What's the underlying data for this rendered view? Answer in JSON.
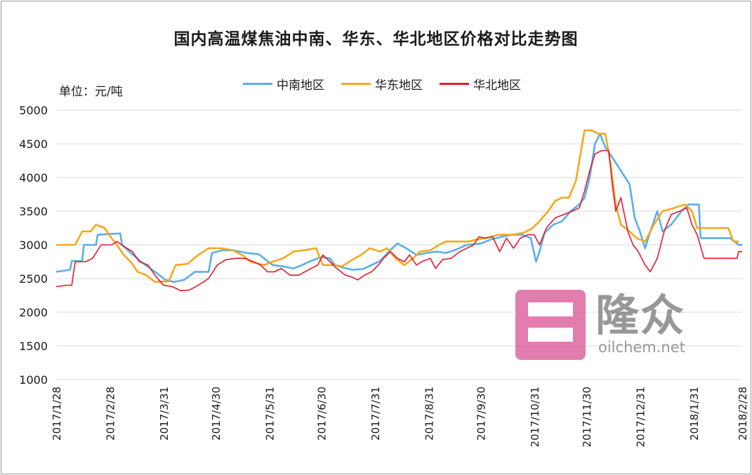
{
  "chart_data": {
    "type": "line",
    "title": "国内高温煤焦油中南、华东、华北地区价格对比走势图",
    "unit_label": "单位：元/吨",
    "ylim": [
      1000,
      5000
    ],
    "yticks": [
      1000,
      1500,
      2000,
      2500,
      3000,
      3500,
      4000,
      4500,
      5000
    ],
    "xticks": [
      "2017/1/28",
      "2017/2/28",
      "2017/3/31",
      "2017/4/30",
      "2017/5/31",
      "2017/6/30",
      "2017/7/31",
      "2017/8/31",
      "2017/9/30",
      "2017/10/31",
      "2017/11/30",
      "2017/12/31",
      "2018/1/31",
      "2018/2/28"
    ],
    "xlim": [
      "2017/1/28",
      "2018/2/28"
    ],
    "grid": true,
    "legend_position": "top-center",
    "series": [
      {
        "name": "中南地区",
        "color": "#5aaee8",
        "points": [
          [
            "2017/1/28",
            2600
          ],
          [
            "2017/2/5",
            2630
          ],
          [
            "2017/2/6",
            2760
          ],
          [
            "2017/2/12",
            2760
          ],
          [
            "2017/2/13",
            3000
          ],
          [
            "2017/2/20",
            3000
          ],
          [
            "2017/2/21",
            3150
          ],
          [
            "2017/3/6",
            3170
          ],
          [
            "2017/3/7",
            3000
          ],
          [
            "2017/3/12",
            2880
          ],
          [
            "2017/3/18",
            2750
          ],
          [
            "2017/3/26",
            2600
          ],
          [
            "2017/4/1",
            2480
          ],
          [
            "2017/4/6",
            2450
          ],
          [
            "2017/4/12",
            2480
          ],
          [
            "2017/4/18",
            2600
          ],
          [
            "2017/4/26",
            2600
          ],
          [
            "2017/4/28",
            2880
          ],
          [
            "2017/5/4",
            2920
          ],
          [
            "2017/5/10",
            2920
          ],
          [
            "2017/5/18",
            2880
          ],
          [
            "2017/5/25",
            2860
          ],
          [
            "2017/5/28",
            2800
          ],
          [
            "2017/6/2",
            2700
          ],
          [
            "2017/6/8",
            2680
          ],
          [
            "2017/6/14",
            2650
          ],
          [
            "2017/6/19",
            2700
          ],
          [
            "2017/6/23",
            2750
          ],
          [
            "2017/6/30",
            2820
          ],
          [
            "2017/7/5",
            2800
          ],
          [
            "2017/7/8",
            2700
          ],
          [
            "2017/7/13",
            2660
          ],
          [
            "2017/7/18",
            2630
          ],
          [
            "2017/7/24",
            2640
          ],
          [
            "2017/7/29",
            2700
          ],
          [
            "2017/8/3",
            2760
          ],
          [
            "2017/8/8",
            2900
          ],
          [
            "2017/8/13",
            3020
          ],
          [
            "2017/8/18",
            2950
          ],
          [
            "2017/8/24",
            2850
          ],
          [
            "2017/8/30",
            2880
          ],
          [
            "2017/9/5",
            2900
          ],
          [
            "2017/9/10",
            2880
          ],
          [
            "2017/9/15",
            2920
          ],
          [
            "2017/9/22",
            3000
          ],
          [
            "2017/9/30",
            3020
          ],
          [
            "2017/10/6",
            3080
          ],
          [
            "2017/10/12",
            3120
          ],
          [
            "2017/10/18",
            3150
          ],
          [
            "2017/10/24",
            3150
          ],
          [
            "2017/10/29",
            3100
          ],
          [
            "2017/11/1",
            2750
          ],
          [
            "2017/11/3",
            2900
          ],
          [
            "2017/11/6",
            3180
          ],
          [
            "2017/11/11",
            3300
          ],
          [
            "2017/11/16",
            3350
          ],
          [
            "2017/11/21",
            3500
          ],
          [
            "2017/11/26",
            3600
          ],
          [
            "2017/11/29",
            3700
          ],
          [
            "2017/12/2",
            4000
          ],
          [
            "2017/12/5",
            4500
          ],
          [
            "2017/12/8",
            4650
          ],
          [
            "2017/12/11",
            4450
          ],
          [
            "2017/12/15",
            4300
          ],
          [
            "2017/12/20",
            4100
          ],
          [
            "2017/12/25",
            3900
          ],
          [
            "2017/12/28",
            3400
          ],
          [
            "2017/12/31",
            3200
          ],
          [
            "2018/1/3",
            2950
          ],
          [
            "2018/1/6",
            3200
          ],
          [
            "2018/1/10",
            3500
          ],
          [
            "2018/1/13",
            3200
          ],
          [
            "2018/1/18",
            3300
          ],
          [
            "2018/1/24",
            3500
          ],
          [
            "2018/1/28",
            3600
          ],
          [
            "2018/2/3",
            3600
          ],
          [
            "2018/2/4",
            3100
          ],
          [
            "2018/2/14",
            3100
          ],
          [
            "2018/2/21",
            3100
          ],
          [
            "2018/2/26",
            3000
          ],
          [
            "2018/2/28",
            3000
          ]
        ]
      },
      {
        "name": "华东地区",
        "color": "#f5a81c",
        "points": [
          [
            "2017/1/28",
            3000
          ],
          [
            "2017/2/8",
            3000
          ],
          [
            "2017/2/12",
            3200
          ],
          [
            "2017/2/17",
            3200
          ],
          [
            "2017/2/20",
            3300
          ],
          [
            "2017/2/25",
            3250
          ],
          [
            "2017/3/1",
            3100
          ],
          [
            "2017/3/4",
            3000
          ],
          [
            "2017/3/8",
            2850
          ],
          [
            "2017/3/12",
            2750
          ],
          [
            "2017/3/16",
            2600
          ],
          [
            "2017/3/21",
            2550
          ],
          [
            "2017/3/26",
            2450
          ],
          [
            "2017/4/3",
            2460
          ],
          [
            "2017/4/7",
            2700
          ],
          [
            "2017/4/14",
            2720
          ],
          [
            "2017/4/20",
            2850
          ],
          [
            "2017/4/26",
            2950
          ],
          [
            "2017/5/3",
            2950
          ],
          [
            "2017/5/10",
            2920
          ],
          [
            "2017/5/16",
            2840
          ],
          [
            "2017/5/20",
            2750
          ],
          [
            "2017/5/28",
            2700
          ],
          [
            "2017/6/2",
            2750
          ],
          [
            "2017/6/8",
            2800
          ],
          [
            "2017/6/14",
            2900
          ],
          [
            "2017/6/20",
            2920
          ],
          [
            "2017/6/27",
            2950
          ],
          [
            "2017/7/1",
            2700
          ],
          [
            "2017/7/8",
            2700
          ],
          [
            "2017/7/12",
            2680
          ],
          [
            "2017/7/18",
            2780
          ],
          [
            "2017/7/23",
            2850
          ],
          [
            "2017/7/28",
            2950
          ],
          [
            "2017/8/3",
            2900
          ],
          [
            "2017/8/7",
            2950
          ],
          [
            "2017/8/12",
            2800
          ],
          [
            "2017/8/17",
            2700
          ],
          [
            "2017/8/22",
            2800
          ],
          [
            "2017/8/26",
            2900
          ],
          [
            "2017/9/1",
            2920
          ],
          [
            "2017/9/6",
            3000
          ],
          [
            "2017/9/10",
            3050
          ],
          [
            "2017/9/17",
            3050
          ],
          [
            "2017/9/23",
            3050
          ],
          [
            "2017/9/28",
            3080
          ],
          [
            "2017/10/3",
            3100
          ],
          [
            "2017/10/10",
            3150
          ],
          [
            "2017/10/18",
            3150
          ],
          [
            "2017/10/25",
            3180
          ],
          [
            "2017/10/30",
            3250
          ],
          [
            "2017/11/3",
            3350
          ],
          [
            "2017/11/8",
            3500
          ],
          [
            "2017/11/12",
            3650
          ],
          [
            "2017/11/16",
            3700
          ],
          [
            "2017/11/20",
            3700
          ],
          [
            "2017/11/24",
            3950
          ],
          [
            "2017/11/27",
            4400
          ],
          [
            "2017/11/29",
            4700
          ],
          [
            "2017/12/3",
            4700
          ],
          [
            "2017/12/7",
            4650
          ],
          [
            "2017/12/11",
            4650
          ],
          [
            "2017/12/14",
            4200
          ],
          [
            "2017/12/17",
            3600
          ],
          [
            "2017/12/20",
            3300
          ],
          [
            "2017/12/25",
            3200
          ],
          [
            "2017/12/29",
            3100
          ],
          [
            "2018/1/3",
            3050
          ],
          [
            "2018/1/8",
            3300
          ],
          [
            "2018/1/13",
            3500
          ],
          [
            "2018/1/20",
            3550
          ],
          [
            "2018/1/26",
            3600
          ],
          [
            "2018/1/30",
            3500
          ],
          [
            "2018/2/2",
            3250
          ],
          [
            "2018/2/9",
            3250
          ],
          [
            "2018/2/20",
            3250
          ],
          [
            "2018/2/23",
            3050
          ],
          [
            "2018/2/26",
            3050
          ]
        ]
      },
      {
        "name": "华北地区",
        "color": "#e8182c",
        "points": [
          [
            "2017/1/28",
            2380
          ],
          [
            "2017/2/3",
            2400
          ],
          [
            "2017/2/6",
            2400
          ],
          [
            "2017/2/8",
            2750
          ],
          [
            "2017/2/14",
            2750
          ],
          [
            "2017/2/18",
            2800
          ],
          [
            "2017/2/23",
            3000
          ],
          [
            "2017/3/1",
            3000
          ],
          [
            "2017/3/4",
            3050
          ],
          [
            "2017/3/8",
            2980
          ],
          [
            "2017/3/13",
            2900
          ],
          [
            "2017/3/17",
            2750
          ],
          [
            "2017/3/22",
            2700
          ],
          [
            "2017/3/26",
            2550
          ],
          [
            "2017/3/31",
            2400
          ],
          [
            "2017/4/5",
            2380
          ],
          [
            "2017/4/10",
            2320
          ],
          [
            "2017/4/15",
            2330
          ],
          [
            "2017/4/20",
            2400
          ],
          [
            "2017/4/26",
            2500
          ],
          [
            "2017/5/1",
            2700
          ],
          [
            "2017/5/6",
            2780
          ],
          [
            "2017/5/12",
            2800
          ],
          [
            "2017/5/17",
            2800
          ],
          [
            "2017/5/22",
            2750
          ],
          [
            "2017/5/26",
            2700
          ],
          [
            "2017/5/30",
            2600
          ],
          [
            "2017/6/3",
            2600
          ],
          [
            "2017/6/7",
            2650
          ],
          [
            "2017/6/12",
            2550
          ],
          [
            "2017/6/17",
            2550
          ],
          [
            "2017/6/22",
            2620
          ],
          [
            "2017/6/28",
            2700
          ],
          [
            "2017/7/1",
            2850
          ],
          [
            "2017/7/5",
            2750
          ],
          [
            "2017/7/9",
            2650
          ],
          [
            "2017/7/14",
            2550
          ],
          [
            "2017/7/18",
            2520
          ],
          [
            "2017/7/21",
            2480
          ],
          [
            "2017/7/25",
            2550
          ],
          [
            "2017/7/29",
            2600
          ],
          [
            "2017/8/2",
            2700
          ],
          [
            "2017/8/5",
            2800
          ],
          [
            "2017/8/9",
            2900
          ],
          [
            "2017/8/13",
            2800
          ],
          [
            "2017/8/17",
            2750
          ],
          [
            "2017/8/20",
            2850
          ],
          [
            "2017/8/24",
            2700
          ],
          [
            "2017/8/27",
            2750
          ],
          [
            "2017/9/1",
            2800
          ],
          [
            "2017/9/4",
            2650
          ],
          [
            "2017/9/8",
            2780
          ],
          [
            "2017/9/13",
            2800
          ],
          [
            "2017/9/18",
            2900
          ],
          [
            "2017/9/22",
            2950
          ],
          [
            "2017/9/26",
            3000
          ],
          [
            "2017/9/29",
            3120
          ],
          [
            "2017/10/3",
            3100
          ],
          [
            "2017/10/7",
            3120
          ],
          [
            "2017/10/11",
            2900
          ],
          [
            "2017/10/15",
            3100
          ],
          [
            "2017/10/19",
            2950
          ],
          [
            "2017/10/23",
            3100
          ],
          [
            "2017/10/27",
            3150
          ],
          [
            "2017/10/31",
            3150
          ],
          [
            "2017/11/3",
            3000
          ],
          [
            "2017/11/7",
            3250
          ],
          [
            "2017/11/12",
            3400
          ],
          [
            "2017/11/17",
            3450
          ],
          [
            "2017/11/22",
            3500
          ],
          [
            "2017/11/26",
            3550
          ],
          [
            "2017/11/29",
            3800
          ],
          [
            "2017/12/2",
            4100
          ],
          [
            "2017/12/5",
            4350
          ],
          [
            "2017/12/9",
            4400
          ],
          [
            "2017/12/13",
            4400
          ],
          [
            "2017/12/15",
            3900
          ],
          [
            "2017/12/17",
            3500
          ],
          [
            "2017/12/20",
            3700
          ],
          [
            "2017/12/24",
            3200
          ],
          [
            "2017/12/27",
            3000
          ],
          [
            "2017/12/30",
            2900
          ],
          [
            "2018/1/3",
            2700
          ],
          [
            "2018/1/6",
            2600
          ],
          [
            "2018/1/10",
            2800
          ],
          [
            "2018/1/14",
            3200
          ],
          [
            "2018/1/18",
            3450
          ],
          [
            "2018/1/23",
            3500
          ],
          [
            "2018/1/27",
            3550
          ],
          [
            "2018/1/30",
            3300
          ],
          [
            "2018/2/2",
            3150
          ],
          [
            "2018/2/6",
            2800
          ],
          [
            "2018/2/12",
            2800
          ],
          [
            "2018/2/19",
            2800
          ],
          [
            "2018/2/25",
            2800
          ],
          [
            "2018/2/26",
            2900
          ],
          [
            "2018/2/28",
            2900
          ]
        ]
      }
    ]
  },
  "watermark": {
    "logo_text": "隆众",
    "url": "oilchem.net"
  }
}
